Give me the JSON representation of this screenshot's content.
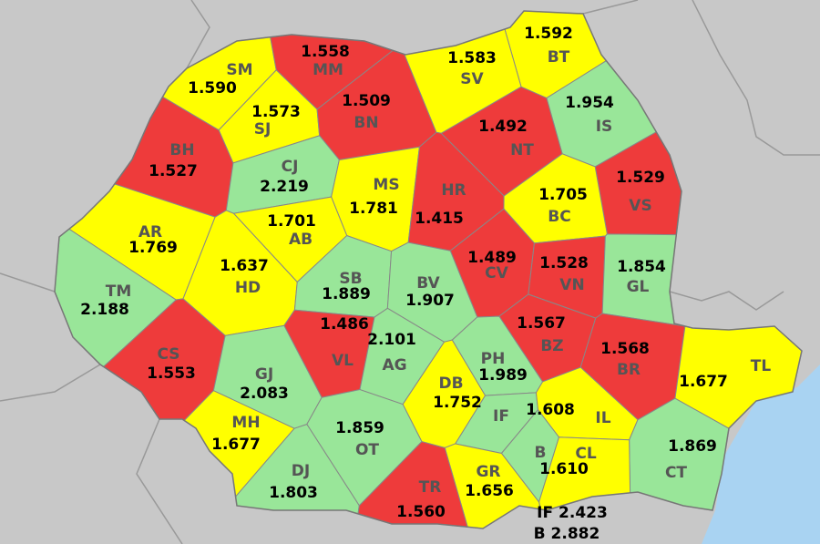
{
  "counties": [
    {
      "code": "SM",
      "value": "1.590",
      "color": "#ffff00"
    },
    {
      "code": "MM",
      "value": "1.558",
      "color": "#ee3b3b"
    },
    {
      "code": "BT",
      "value": "1.592",
      "color": "#ffff00"
    },
    {
      "code": "SV",
      "value": "1.583",
      "color": "#ffff00"
    },
    {
      "code": "SJ",
      "value": "1.573",
      "color": "#ffff00"
    },
    {
      "code": "BN",
      "value": "1.509",
      "color": "#ee3b3b"
    },
    {
      "code": "IS",
      "value": "1.954",
      "color": "#99e699"
    },
    {
      "code": "BH",
      "value": "1.527",
      "color": "#ee3b3b"
    },
    {
      "code": "CJ",
      "value": "2.219",
      "color": "#99e699"
    },
    {
      "code": "NT",
      "value": "1.492",
      "color": "#ee3b3b"
    },
    {
      "code": "MS",
      "value": "1.781",
      "color": "#ffff00"
    },
    {
      "code": "VS",
      "value": "1.529",
      "color": "#ee3b3b"
    },
    {
      "code": "HR",
      "value": "1.415",
      "color": "#ee3b3b"
    },
    {
      "code": "BC",
      "value": "1.705",
      "color": "#ffff00"
    },
    {
      "code": "AR",
      "value": "1.769",
      "color": "#ffff00"
    },
    {
      "code": "AB",
      "value": "1.701",
      "color": "#ffff00"
    },
    {
      "code": "CV",
      "value": "1.489",
      "color": "#ee3b3b"
    },
    {
      "code": "VN",
      "value": "1.528",
      "color": "#ee3b3b"
    },
    {
      "code": "GL",
      "value": "1.854",
      "color": "#99e699"
    },
    {
      "code": "TM",
      "value": "2.188",
      "color": "#99e699"
    },
    {
      "code": "HD",
      "value": "1.637",
      "color": "#ffff00"
    },
    {
      "code": "SB",
      "value": "1.889",
      "color": "#99e699"
    },
    {
      "code": "BV",
      "value": "1.907",
      "color": "#99e699"
    },
    {
      "code": "VL",
      "value": "1.486",
      "color": "#ee3b3b"
    },
    {
      "code": "AG",
      "value": "2.101",
      "color": "#99e699"
    },
    {
      "code": "CS",
      "value": "1.553",
      "color": "#ee3b3b"
    },
    {
      "code": "GJ",
      "value": "2.083",
      "color": "#99e699"
    },
    {
      "code": "PH",
      "value": "1.989",
      "color": "#99e699"
    },
    {
      "code": "BZ",
      "value": "1.567",
      "color": "#ee3b3b"
    },
    {
      "code": "BR",
      "value": "1.568",
      "color": "#ee3b3b"
    },
    {
      "code": "DB",
      "value": "1.752",
      "color": "#ffff00"
    },
    {
      "code": "TL",
      "value": "1.677",
      "color": "#ffff00"
    },
    {
      "code": "IF",
      "color": "#99e699"
    },
    {
      "code": "IL",
      "value": "1.608",
      "color": "#ffff00"
    },
    {
      "code": "MH",
      "value": "1.677",
      "color": "#ffff00"
    },
    {
      "code": "OT",
      "value": "1.859",
      "color": "#99e699"
    },
    {
      "code": "CT",
      "value": "1.869",
      "color": "#99e699"
    },
    {
      "code": "B",
      "color": "#99e699"
    },
    {
      "code": "CL",
      "value": "1.610",
      "color": "#ffff00"
    },
    {
      "code": "DJ",
      "value": "1.803",
      "color": "#99e699"
    },
    {
      "code": "GR",
      "value": "1.656",
      "color": "#ffff00"
    },
    {
      "code": "TR",
      "value": "1.560",
      "color": "#ee3b3b"
    }
  ],
  "legend": [
    {
      "code": "IF",
      "value": "2.423"
    },
    {
      "code": "B",
      "value": "2.882"
    }
  ]
}
